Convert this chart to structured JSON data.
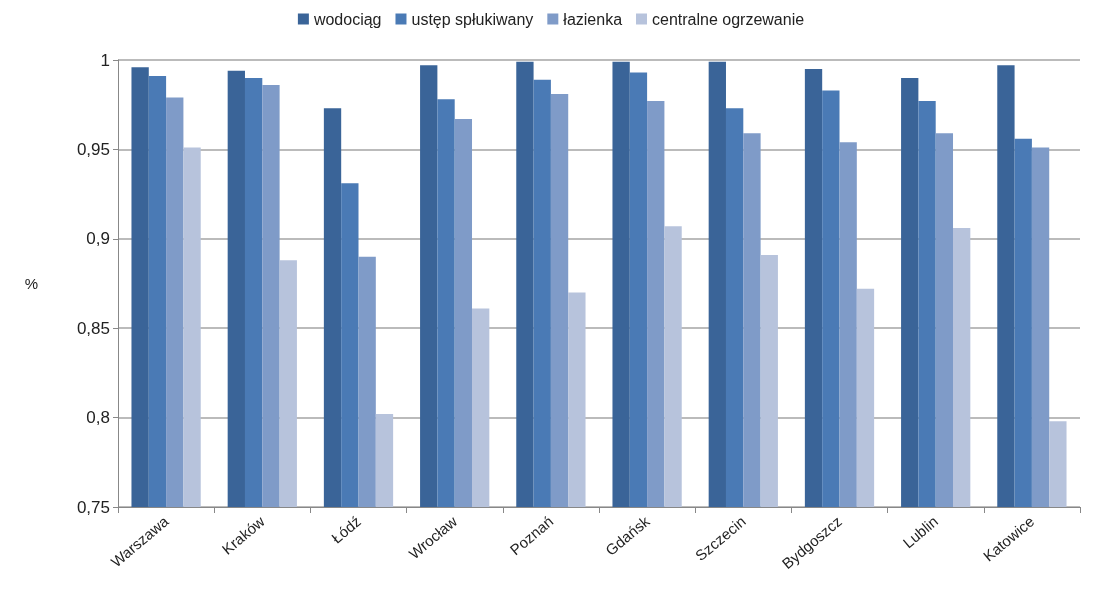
{
  "chart_data": {
    "type": "bar",
    "ylabel": "%",
    "categories": [
      "Warszawa",
      "Kraków",
      "Łódź",
      "Wrocław",
      "Poznań",
      "Gdańsk",
      "Szczecin",
      "Bydgoszcz",
      "Lublin",
      "Katowice"
    ],
    "series": [
      {
        "name": "wodociąg",
        "color": "#3a6498",
        "values": [
          0.996,
          0.994,
          0.973,
          0.997,
          0.999,
          0.999,
          0.999,
          0.995,
          0.99,
          0.997
        ]
      },
      {
        "name": "ustęp spłukiwany",
        "color": "#4a7ab5",
        "values": [
          0.991,
          0.99,
          0.931,
          0.978,
          0.989,
          0.993,
          0.973,
          0.983,
          0.977,
          0.956
        ]
      },
      {
        "name": "łazienka",
        "color": "#7f9bc8",
        "values": [
          0.979,
          0.986,
          0.89,
          0.967,
          0.981,
          0.977,
          0.959,
          0.954,
          0.959,
          0.951
        ]
      },
      {
        "name": "centralne ogrzewanie",
        "color": "#b7c3dc",
        "values": [
          0.951,
          0.888,
          0.802,
          0.861,
          0.87,
          0.907,
          0.891,
          0.872,
          0.906,
          0.798
        ]
      }
    ],
    "ylim": [
      0.75,
      1
    ],
    "yticks": [
      {
        "value": 0.75,
        "label": "0,75"
      },
      {
        "value": 0.8,
        "label": "0,8"
      },
      {
        "value": 0.85,
        "label": "0,85"
      },
      {
        "value": 0.9,
        "label": "0,9"
      },
      {
        "value": 0.95,
        "label": "0,95"
      },
      {
        "value": 1,
        "label": "1"
      }
    ],
    "grid": "y",
    "legend": "top"
  }
}
